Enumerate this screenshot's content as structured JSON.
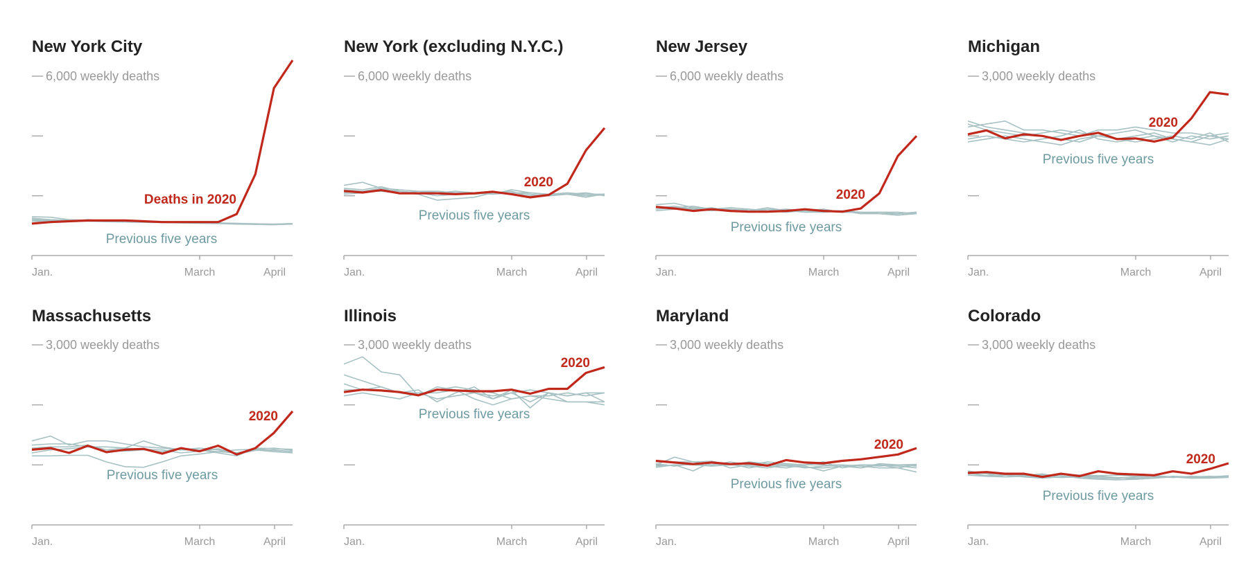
{
  "colors": {
    "current_year": "#c0281b",
    "previous_years": "#a8c1c3",
    "previous_label": "#6e9a9f",
    "axis": "#aaaaaa"
  },
  "chart_data": [
    {
      "type": "line",
      "title": "New York City",
      "scale_label": "6,000 weekly deaths",
      "ymax": 6000,
      "ylim": [
        0,
        6000
      ],
      "x_ticks": [
        "Jan.",
        "March",
        "April"
      ],
      "current_label": "Deaths in 2020",
      "previous_label": "Previous five years",
      "current": [
        1067,
        1120,
        1147,
        1173,
        1173,
        1173,
        1147,
        1120,
        1120,
        1120,
        1120,
        1387,
        2720,
        5600,
        6533
      ],
      "previous": [
        [
          1300,
          1280,
          1200,
          1180,
          1170,
          1160,
          1150,
          1140,
          1120,
          1100,
          1090,
          1080,
          1060,
          1050,
          1070
        ],
        [
          1250,
          1200,
          1180,
          1150,
          1170,
          1140,
          1120,
          1130,
          1110,
          1100,
          1080,
          1060,
          1050,
          1040,
          1060
        ],
        [
          1180,
          1160,
          1150,
          1200,
          1160,
          1150,
          1130,
          1110,
          1120,
          1100,
          1090,
          1070,
          1040,
          1030,
          1050
        ],
        [
          1220,
          1190,
          1170,
          1160,
          1140,
          1130,
          1140,
          1120,
          1100,
          1090,
          1080,
          1060,
          1060,
          1050,
          1070
        ],
        [
          1150,
          1140,
          1160,
          1150,
          1130,
          1120,
          1110,
          1100,
          1090,
          1080,
          1070,
          1050,
          1040,
          1030,
          1060
        ]
      ]
    },
    {
      "type": "line",
      "title": "New York (excluding N.Y.C.)",
      "scale_label": "6,000 weekly deaths",
      "ymax": 6000,
      "ylim": [
        0,
        6000
      ],
      "x_ticks": [
        "Jan.",
        "March",
        "April"
      ],
      "current_label": "2020",
      "previous_label": "Previous five years",
      "current": [
        2160,
        2107,
        2187,
        2080,
        2080,
        2080,
        2053,
        2080,
        2133,
        2053,
        1947,
        2027,
        2400,
        3520,
        4267
      ],
      "previous": [
        [
          2350,
          2450,
          2250,
          2200,
          2150,
          2100,
          2150,
          2100,
          2050,
          2200,
          2100,
          2050,
          2050,
          2000,
          2030
        ],
        [
          2250,
          2200,
          2300,
          2150,
          2100,
          2000,
          2050,
          2100,
          2150,
          2050,
          2000,
          2050,
          2100,
          2050,
          2050
        ],
        [
          2200,
          2150,
          2250,
          2100,
          2150,
          2150,
          2100,
          2050,
          2100,
          2100,
          2050,
          2000,
          2050,
          2100,
          2000
        ],
        [
          2100,
          2150,
          2150,
          2100,
          2050,
          1850,
          1900,
          1950,
          2100,
          2150,
          1950,
          2000,
          2050,
          2050,
          2050
        ],
        [
          2050,
          2100,
          2200,
          2150,
          2100,
          2150,
          2100,
          2100,
          2050,
          2100,
          2100,
          2050,
          2050,
          1950,
          2060
        ]
      ]
    },
    {
      "type": "line",
      "title": "New Jersey",
      "scale_label": "6,000 weekly deaths",
      "ymax": 6000,
      "ylim": [
        0,
        6000
      ],
      "x_ticks": [
        "Jan.",
        "March",
        "April"
      ],
      "current_label": "2020",
      "previous_label": "Previous five years",
      "current": [
        1627,
        1573,
        1493,
        1547,
        1493,
        1467,
        1467,
        1493,
        1547,
        1493,
        1467,
        1573,
        2080,
        3333,
        4000
      ],
      "previous": [
        [
          1700,
          1750,
          1600,
          1550,
          1600,
          1550,
          1500,
          1550,
          1500,
          1450,
          1500,
          1450,
          1400,
          1350,
          1400
        ],
        [
          1650,
          1600,
          1650,
          1550,
          1550,
          1500,
          1600,
          1500,
          1500,
          1550,
          1450,
          1450,
          1450,
          1400,
          1450
        ],
        [
          1600,
          1650,
          1550,
          1600,
          1500,
          1550,
          1500,
          1450,
          1500,
          1500,
          1500,
          1400,
          1450,
          1450,
          1400
        ],
        [
          1550,
          1600,
          1550,
          1500,
          1550,
          1500,
          1550,
          1500,
          1450,
          1500,
          1450,
          1450,
          1400,
          1400,
          1450
        ],
        [
          1500,
          1550,
          1600,
          1550,
          1500,
          1450,
          1500,
          1550,
          1450,
          1450,
          1500,
          1400,
          1400,
          1350,
          1420
        ]
      ]
    },
    {
      "type": "line",
      "title": "Michigan",
      "scale_label": "3,000 weekly deaths",
      "ymax": 3000,
      "ylim": [
        0,
        3000
      ],
      "x_ticks": [
        "Jan.",
        "March",
        "April"
      ],
      "current_label": "2020",
      "previous_label": "Previous five years",
      "current": [
        2027,
        2093,
        1960,
        2027,
        2000,
        1933,
        2000,
        2053,
        1947,
        1960,
        1907,
        1973,
        2293,
        2733,
        2693
      ],
      "previous": [
        [
          2250,
          2150,
          2100,
          2050,
          2000,
          1950,
          1900,
          2000,
          2050,
          2100,
          2000,
          1950,
          1900,
          1850,
          1950
        ],
        [
          2200,
          2100,
          2050,
          2000,
          2050,
          2100,
          2050,
          2000,
          1950,
          2000,
          2050,
          1950,
          1900,
          2000,
          1950
        ],
        [
          2150,
          2200,
          2250,
          2100,
          2100,
          2050,
          2000,
          2100,
          2100,
          2150,
          2100,
          2050,
          2050,
          2000,
          2050
        ],
        [
          1900,
          1950,
          2000,
          1950,
          1900,
          1850,
          1950,
          2000,
          1950,
          1900,
          1950,
          2000,
          1950,
          2050,
          1900
        ],
        [
          1950,
          2000,
          1950,
          1900,
          1950,
          2000,
          2100,
          1950,
          1900,
          1950,
          2000,
          1900,
          2000,
          1950,
          2000
        ]
      ]
    },
    {
      "type": "line",
      "title": "Massachusetts",
      "scale_label": "3,000 weekly deaths",
      "ymax": 3000,
      "ylim": [
        0,
        3000
      ],
      "x_ticks": [
        "Jan.",
        "March",
        "April"
      ],
      "current_label": "2020",
      "previous_label": "Previous five years",
      "current": [
        1253,
        1280,
        1200,
        1320,
        1213,
        1253,
        1267,
        1187,
        1280,
        1227,
        1320,
        1173,
        1280,
        1533,
        1893
      ],
      "previous": [
        [
          1400,
          1480,
          1330,
          1400,
          1400,
          1350,
          1300,
          1280,
          1250,
          1250,
          1200,
          1150,
          1280,
          1270,
          1260
        ],
        [
          1330,
          1350,
          1350,
          1300,
          1300,
          1280,
          1400,
          1300,
          1250,
          1280,
          1250,
          1200,
          1250,
          1220,
          1200
        ],
        [
          1150,
          1150,
          1160,
          1160,
          1050,
          970,
          960,
          1050,
          1150,
          1180,
          1220,
          1200,
          1260,
          1240,
          1220
        ],
        [
          1280,
          1300,
          1300,
          1330,
          1250,
          1280,
          1260,
          1250,
          1200,
          1230,
          1270,
          1180,
          1240,
          1250,
          1220
        ],
        [
          1200,
          1250,
          1270,
          1300,
          1250,
          1230,
          1250,
          1220,
          1280,
          1250,
          1220,
          1250,
          1260,
          1280,
          1240
        ]
      ]
    },
    {
      "type": "line",
      "title": "Illinois",
      "scale_label": "3,000 weekly deaths",
      "ymax": 3000,
      "ylim": [
        0,
        3000
      ],
      "x_ticks": [
        "Jan.",
        "March",
        "April"
      ],
      "current_label": "2020",
      "previous_label": "Previous five years",
      "current": [
        2213,
        2253,
        2240,
        2213,
        2160,
        2253,
        2240,
        2227,
        2227,
        2253,
        2187,
        2267,
        2267,
        2533,
        2627
      ],
      "previous": [
        [
          2680,
          2800,
          2550,
          2500,
          2150,
          2300,
          2250,
          2100,
          2000,
          2100,
          2150,
          2100,
          2050,
          2050,
          2000
        ],
        [
          2500,
          2400,
          2300,
          2200,
          2250,
          2050,
          2200,
          2300,
          2100,
          2250,
          1950,
          2200,
          2150,
          2200,
          2200
        ],
        [
          2350,
          2250,
          2300,
          2200,
          2200,
          2100,
          2150,
          2200,
          2100,
          2200,
          2050,
          2200,
          2050,
          2050,
          2050
        ],
        [
          2250,
          2250,
          2250,
          2200,
          2150,
          2250,
          2300,
          2250,
          2200,
          2100,
          2150,
          2150,
          2200,
          2150,
          2200
        ],
        [
          2150,
          2200,
          2150,
          2100,
          2200,
          2200,
          2250,
          2200,
          2150,
          2200,
          2250,
          2200,
          2150,
          2200,
          2050
        ]
      ]
    },
    {
      "type": "line",
      "title": "Maryland",
      "scale_label": "3,000 weekly deaths",
      "ymax": 3000,
      "ylim": [
        0,
        3000
      ],
      "x_ticks": [
        "Jan.",
        "March",
        "April"
      ],
      "current_label": "2020",
      "previous_label": "Previous five years",
      "current": [
        1067,
        1040,
        1013,
        1040,
        1013,
        1027,
        987,
        1080,
        1040,
        1027,
        1067,
        1093,
        1133,
        1173,
        1280
      ],
      "previous": [
        [
          1000,
          1130,
          1050,
          1060,
          1000,
          1050,
          1020,
          1000,
          950,
          980,
          1000,
          950,
          1000,
          980,
          950
        ],
        [
          1050,
          1050,
          1050,
          1000,
          1050,
          1000,
          1050,
          1020,
          1000,
          1050,
          950,
          1000,
          1000,
          950,
          880
        ],
        [
          980,
          1000,
          900,
          1050,
          950,
          1000,
          980,
          950,
          1000,
          1000,
          1000,
          980,
          950,
          950,
          1000
        ],
        [
          1020,
          980,
          1020,
          980,
          1000,
          980,
          950,
          1000,
          980,
          900,
          980,
          950,
          1020,
          1000,
          1010
        ],
        [
          960,
          1000,
          1000,
          980,
          1020,
          950,
          1000,
          980,
          960,
          950,
          980,
          1000,
          980,
          1000,
          980
        ]
      ]
    },
    {
      "type": "line",
      "title": "Colorado",
      "scale_label": "3,000 weekly deaths",
      "ymax": 3000,
      "ylim": [
        0,
        3000
      ],
      "x_ticks": [
        "Jan.",
        "March",
        "April"
      ],
      "current_label": "2020",
      "previous_label": "Previous five years",
      "current": [
        867,
        880,
        853,
        853,
        800,
        853,
        813,
        893,
        853,
        840,
        827,
        893,
        853,
        933,
        1027
      ],
      "previous": [
        [
          900,
          850,
          800,
          820,
          850,
          790,
          800,
          780,
          770,
          800,
          820,
          800,
          780,
          790,
          800
        ],
        [
          860,
          820,
          830,
          800,
          780,
          800,
          820,
          800,
          790,
          760,
          780,
          810,
          800,
          800,
          820
        ],
        [
          880,
          860,
          850,
          830,
          840,
          820,
          780,
          760,
          750,
          760,
          780,
          800,
          780,
          780,
          790
        ],
        [
          830,
          810,
          800,
          810,
          800,
          790,
          800,
          810,
          790,
          780,
          800,
          790,
          810,
          800,
          810
        ],
        [
          850,
          860,
          840,
          830,
          820,
          840,
          830,
          820,
          830,
          810,
          820,
          790,
          800,
          810,
          800
        ]
      ]
    }
  ]
}
